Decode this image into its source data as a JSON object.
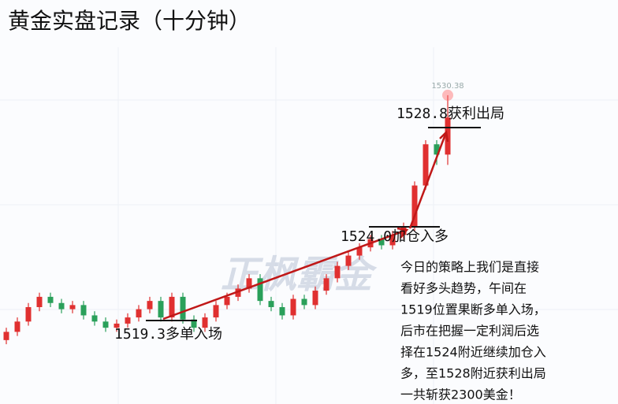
{
  "chart_data": {
    "type": "candlestick",
    "title": "黄金实盘记录（十分钟）",
    "watermark": "正枫霸金",
    "max_price": 1530.38,
    "ylim": [
      1515.4,
      1535.0
    ],
    "up_color": "#e03030",
    "down_color": "#2aa05a",
    "open": [
      1518.5,
      1518.9,
      1519.4,
      1520.1,
      1520.6,
      1520.3,
      1520.0,
      1520.2,
      1519.7,
      1519.4,
      1519.1,
      1519.3,
      1519.6,
      1520.0,
      1520.4,
      1519.6,
      1520.6,
      1519.5,
      1519.1,
      1519.6,
      1520.2,
      1520.6,
      1521.0,
      1521.5,
      1520.4,
      1520.1,
      1519.7,
      1520.5,
      1520.2,
      1520.9,
      1521.5,
      1522.1,
      1522.6,
      1523.0,
      1523.4,
      1523.1,
      1523.6,
      1524.0,
      1526.0,
      1528.0,
      1527.5
    ],
    "high": [
      1519.1,
      1519.6,
      1520.3,
      1520.8,
      1520.8,
      1520.5,
      1520.4,
      1520.4,
      1519.9,
      1519.6,
      1519.5,
      1519.8,
      1520.2,
      1520.6,
      1520.6,
      1520.8,
      1520.8,
      1519.7,
      1519.8,
      1520.4,
      1520.8,
      1521.2,
      1521.7,
      1521.7,
      1520.6,
      1520.3,
      1520.7,
      1520.7,
      1521.1,
      1521.7,
      1522.3,
      1522.8,
      1523.2,
      1523.6,
      1523.6,
      1523.8,
      1524.2,
      1526.2,
      1528.2,
      1528.2,
      1530.38
    ],
    "low": [
      1518.3,
      1518.7,
      1519.2,
      1519.9,
      1520.1,
      1519.8,
      1519.8,
      1519.5,
      1519.2,
      1518.9,
      1518.9,
      1519.1,
      1519.4,
      1519.8,
      1519.4,
      1519.4,
      1519.3,
      1518.9,
      1518.9,
      1519.4,
      1520.0,
      1520.4,
      1520.8,
      1520.2,
      1519.9,
      1519.5,
      1519.5,
      1520.0,
      1520.0,
      1520.7,
      1521.3,
      1521.9,
      1522.4,
      1522.8,
      1522.9,
      1522.9,
      1523.4,
      1523.8,
      1525.8,
      1527.0,
      1527.0
    ],
    "close": [
      1518.9,
      1519.4,
      1520.1,
      1520.6,
      1520.3,
      1520.0,
      1520.2,
      1519.7,
      1519.4,
      1519.1,
      1519.3,
      1519.6,
      1520.0,
      1520.4,
      1519.6,
      1520.6,
      1519.5,
      1519.1,
      1519.6,
      1520.2,
      1520.6,
      1521.0,
      1521.5,
      1520.4,
      1520.1,
      1519.7,
      1520.5,
      1520.2,
      1520.9,
      1521.5,
      1522.1,
      1522.6,
      1523.0,
      1523.4,
      1523.1,
      1523.6,
      1524.0,
      1526.0,
      1528.0,
      1527.5,
      1529.3
    ],
    "annotations": [
      "1519.3多单入场",
      "1524.0加仓入多",
      "1528.8获利出局"
    ],
    "note_lines": [
      "今日的策略上我们是直接",
      "看好多头趋势，午间在",
      "1519位置果断多单入场，",
      "后市在把握一定利润后选",
      "择在1524附近继续加仓入",
      "多，至1528附近获利出局",
      "一共斩获2300美金！"
    ]
  }
}
